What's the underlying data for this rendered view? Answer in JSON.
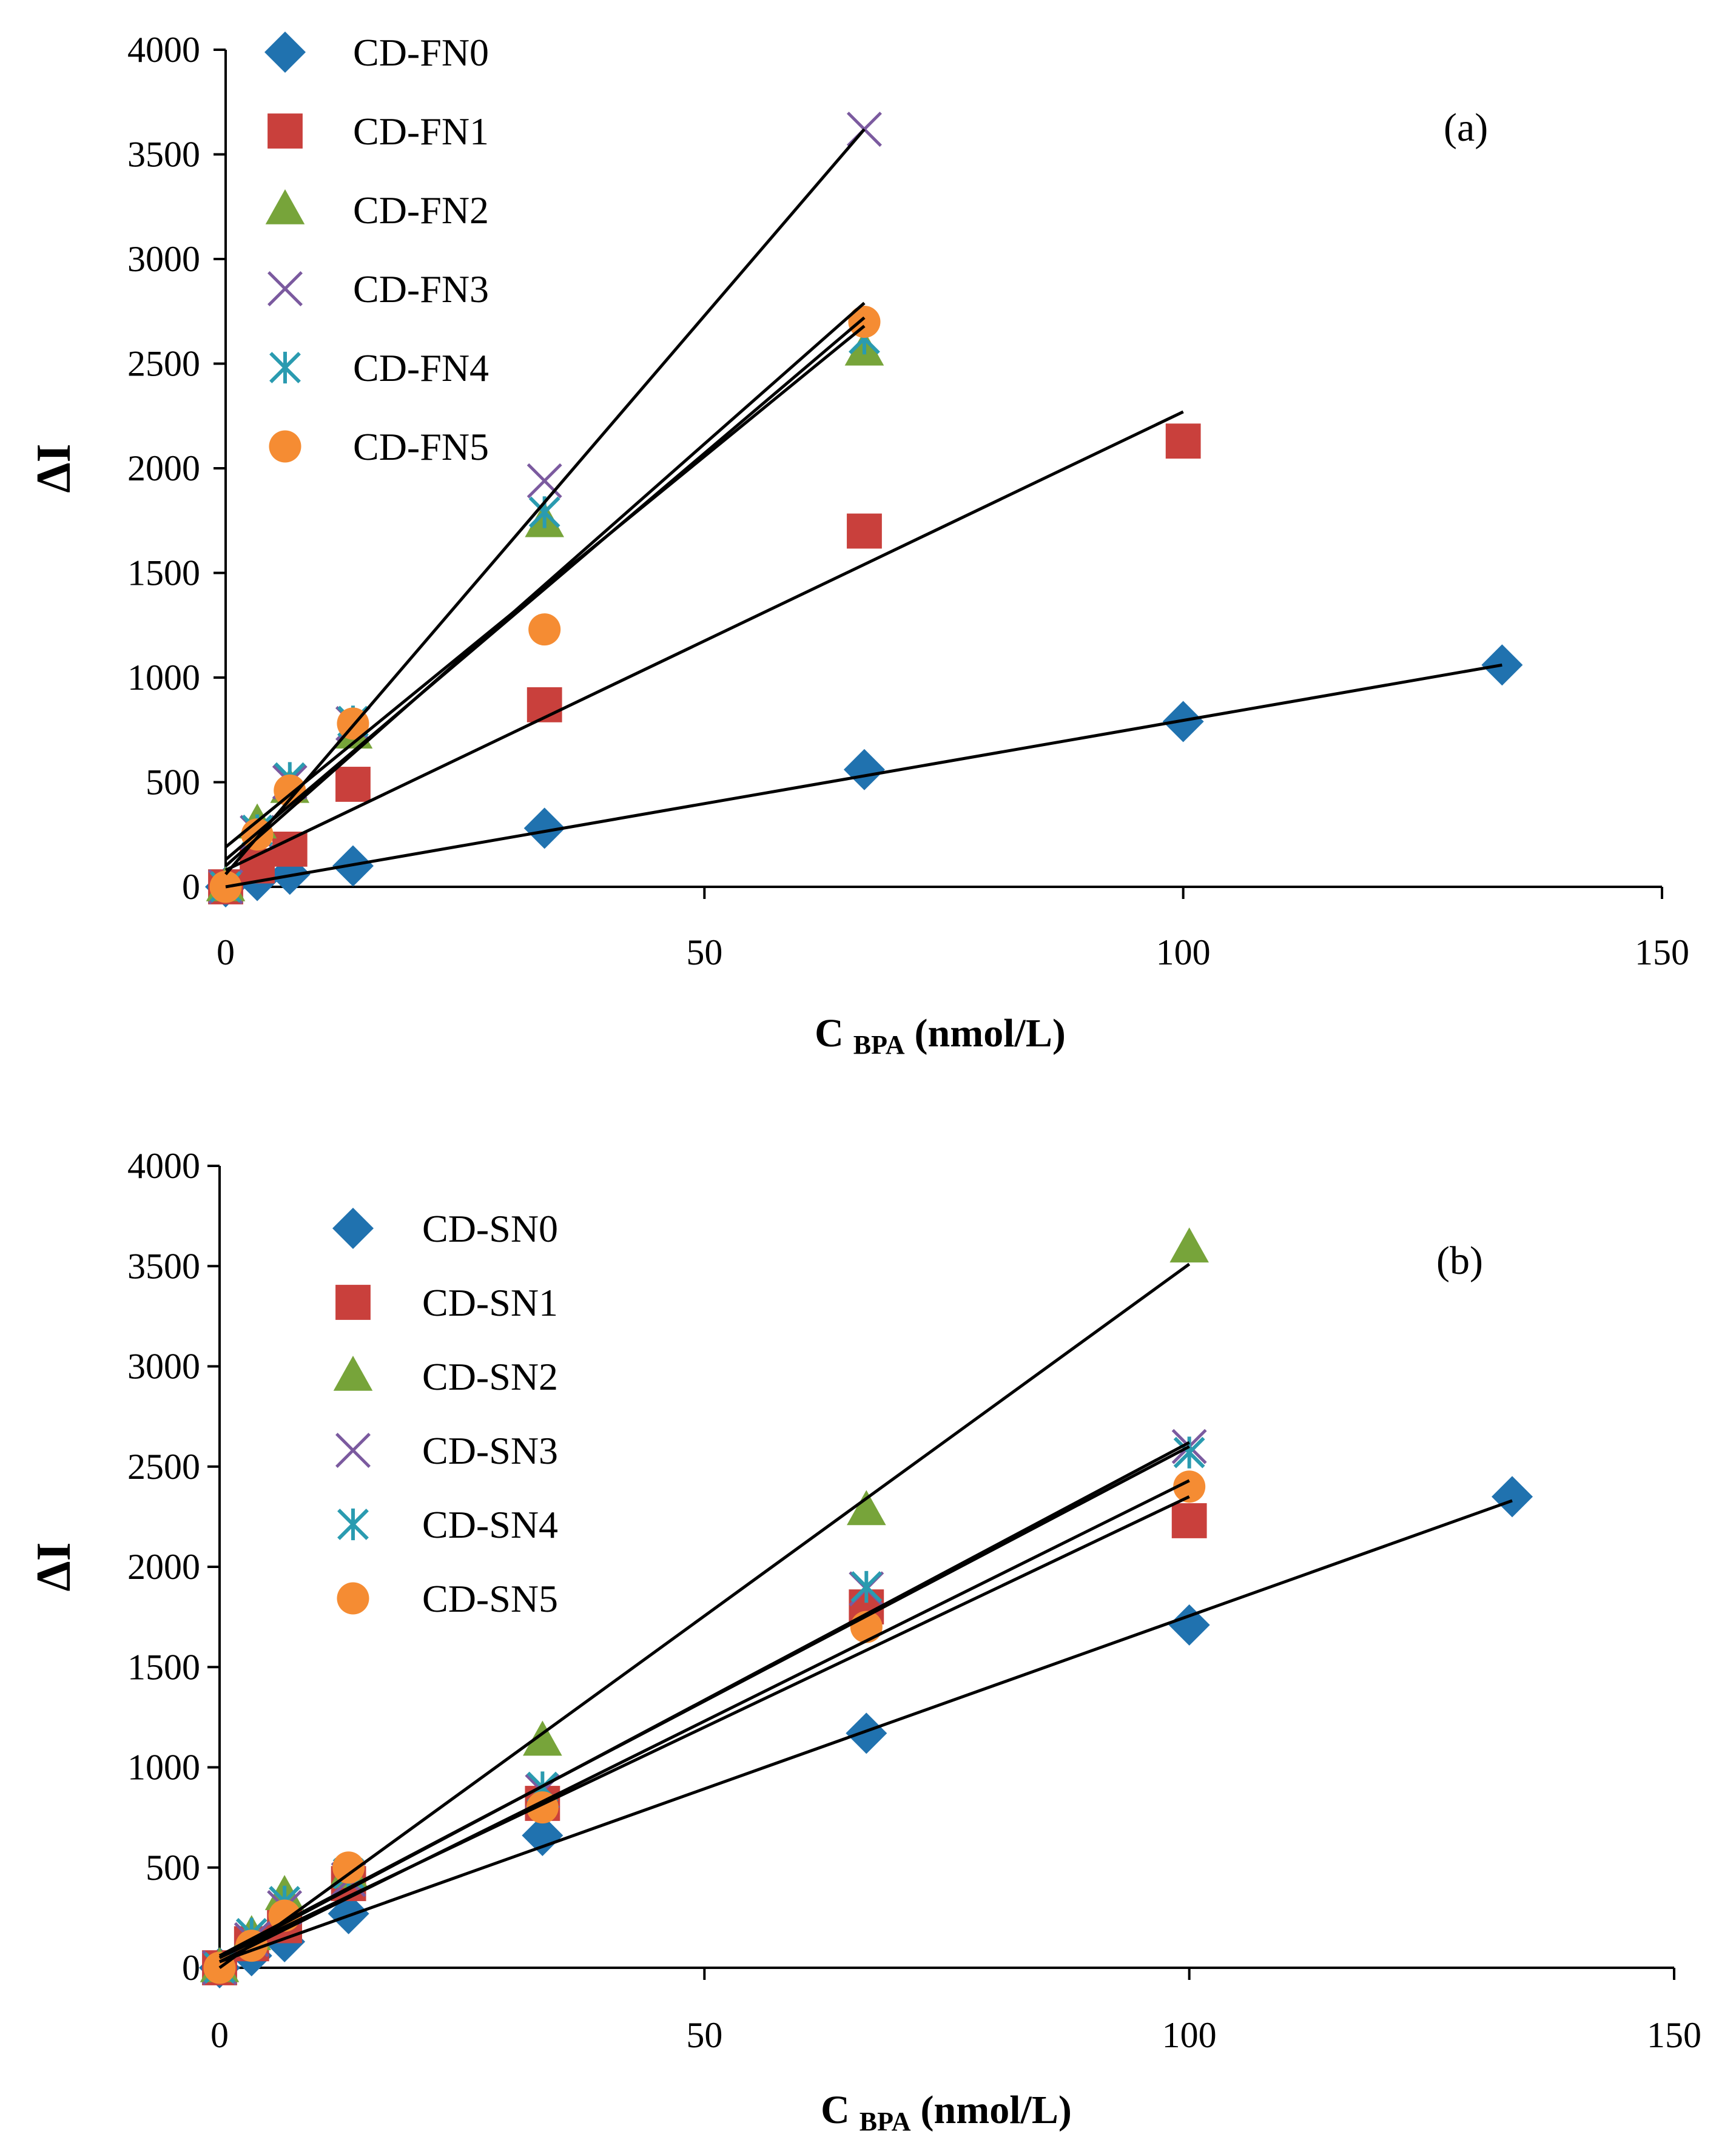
{
  "chart_data": [
    {
      "type": "scatter",
      "panel_label": "(a)",
      "ylabel": "ΔI",
      "xlabel_main": "C",
      "xlabel_sub": "BPA",
      "xlabel_unit": "(nmol/L)",
      "xlim": [
        0,
        150
      ],
      "ylim": [
        0,
        4000
      ],
      "x_ticks": [
        0,
        50,
        100,
        150
      ],
      "y_ticks": [
        0,
        500,
        1000,
        1500,
        2000,
        2500,
        3000,
        3500,
        4000
      ],
      "legend_position": "top-left",
      "series": [
        {
          "name": "CD-FN0",
          "marker": "diamond",
          "color": "#2072AF",
          "x": [
            0,
            3.3,
            6.7,
            13.3,
            33.3,
            66.7,
            100,
            133.3
          ],
          "y": [
            0,
            30,
            60,
            100,
            280,
            560,
            790,
            1060
          ],
          "fit": [
            [
              0,
              0
            ],
            [
              133.3,
              1060
            ]
          ]
        },
        {
          "name": "CD-FN1",
          "marker": "square",
          "color": "#C9403C",
          "x": [
            0,
            3.3,
            6.7,
            13.3,
            33.3,
            66.7,
            100
          ],
          "y": [
            0,
            100,
            180,
            490,
            870,
            1700,
            2130
          ],
          "fit": [
            [
              0,
              80
            ],
            [
              100,
              2270
            ]
          ]
        },
        {
          "name": "CD-FN2",
          "marker": "triangle",
          "color": "#77A43A",
          "x": [
            0,
            3.3,
            6.7,
            13.3,
            33.3,
            66.7
          ],
          "y": [
            0,
            300,
            470,
            730,
            1740,
            2560
          ],
          "fit": [
            [
              0,
              190
            ],
            [
              66.7,
              2680
            ]
          ]
        },
        {
          "name": "CD-FN3",
          "marker": "x",
          "color": "#7B5A9F",
          "x": [
            0,
            3.3,
            6.7,
            13.3,
            33.3,
            66.7
          ],
          "y": [
            0,
            260,
            500,
            780,
            1940,
            3620
          ],
          "fit": [
            [
              0,
              60
            ],
            [
              66.7,
              3620
            ]
          ]
        },
        {
          "name": "CD-FN4",
          "marker": "asterisk",
          "color": "#2A9BB0",
          "x": [
            0,
            3.3,
            6.7,
            13.3,
            33.3,
            66.7
          ],
          "y": [
            0,
            270,
            520,
            790,
            1790,
            2620
          ],
          "fit": [
            [
              0,
              130
            ],
            [
              66.7,
              2720
            ]
          ]
        },
        {
          "name": "CD-FN5",
          "marker": "circle",
          "color": "#F58C33",
          "x": [
            0,
            3.3,
            6.7,
            13.3,
            33.3,
            66.7
          ],
          "y": [
            0,
            250,
            460,
            780,
            1230,
            2700
          ],
          "fit": [
            [
              0,
              100
            ],
            [
              66.7,
              2790
            ]
          ]
        }
      ]
    },
    {
      "type": "scatter",
      "panel_label": "(b)",
      "ylabel": "ΔI",
      "xlabel_main": "C",
      "xlabel_sub": "BPA",
      "xlabel_unit": "(nmol/L)",
      "xlim": [
        0,
        150
      ],
      "ylim": [
        0,
        4000
      ],
      "x_ticks": [
        0,
        50,
        100,
        150
      ],
      "y_ticks": [
        0,
        500,
        1000,
        1500,
        2000,
        2500,
        3000,
        3500,
        4000
      ],
      "legend_position": "top-left",
      "series": [
        {
          "name": "CD-SN0",
          "marker": "diamond",
          "color": "#2072AF",
          "x": [
            0,
            3.3,
            6.7,
            13.3,
            33.3,
            66.7,
            100,
            133.3
          ],
          "y": [
            0,
            60,
            130,
            270,
            660,
            1170,
            1710,
            2350
          ],
          "fit": [
            [
              0,
              30
            ],
            [
              133.3,
              2330
            ]
          ]
        },
        {
          "name": "CD-SN1",
          "marker": "square",
          "color": "#C9403C",
          "x": [
            0,
            3.3,
            6.7,
            13.3,
            33.3,
            66.7,
            100
          ],
          "y": [
            0,
            120,
            210,
            420,
            820,
            1800,
            2230
          ],
          "fit": [
            [
              0,
              50
            ],
            [
              100,
              2350
            ]
          ]
        },
        {
          "name": "CD-SN2",
          "marker": "triangle",
          "color": "#77A43A",
          "x": [
            0,
            3.3,
            6.7,
            13.3,
            33.3,
            66.7,
            100
          ],
          "y": [
            0,
            160,
            360,
            470,
            1130,
            2280,
            3590
          ],
          "fit": [
            [
              0,
              0
            ],
            [
              100,
              3510
            ]
          ]
        },
        {
          "name": "CD-SN3",
          "marker": "x",
          "color": "#7B5A9F",
          "x": [
            0,
            3.3,
            6.7,
            13.3,
            33.3,
            66.7,
            100
          ],
          "y": [
            0,
            140,
            300,
            440,
            880,
            1890,
            2600
          ],
          "fit": [
            [
              0,
              50
            ],
            [
              100,
              2620
            ]
          ]
        },
        {
          "name": "CD-SN4",
          "marker": "asterisk",
          "color": "#2A9BB0",
          "x": [
            0,
            3.3,
            6.7,
            13.3,
            33.3,
            66.7,
            100
          ],
          "y": [
            0,
            170,
            330,
            470,
            900,
            1900,
            2570
          ],
          "fit": [
            [
              0,
              60
            ],
            [
              100,
              2600
            ]
          ]
        },
        {
          "name": "CD-SN5",
          "marker": "circle",
          "color": "#F58C33",
          "x": [
            0,
            3.3,
            6.7,
            13.3,
            33.3,
            66.7,
            100
          ],
          "y": [
            0,
            110,
            260,
            500,
            800,
            1700,
            2400
          ],
          "fit": [
            [
              0,
              30
            ],
            [
              100,
              2430
            ]
          ]
        }
      ]
    }
  ]
}
